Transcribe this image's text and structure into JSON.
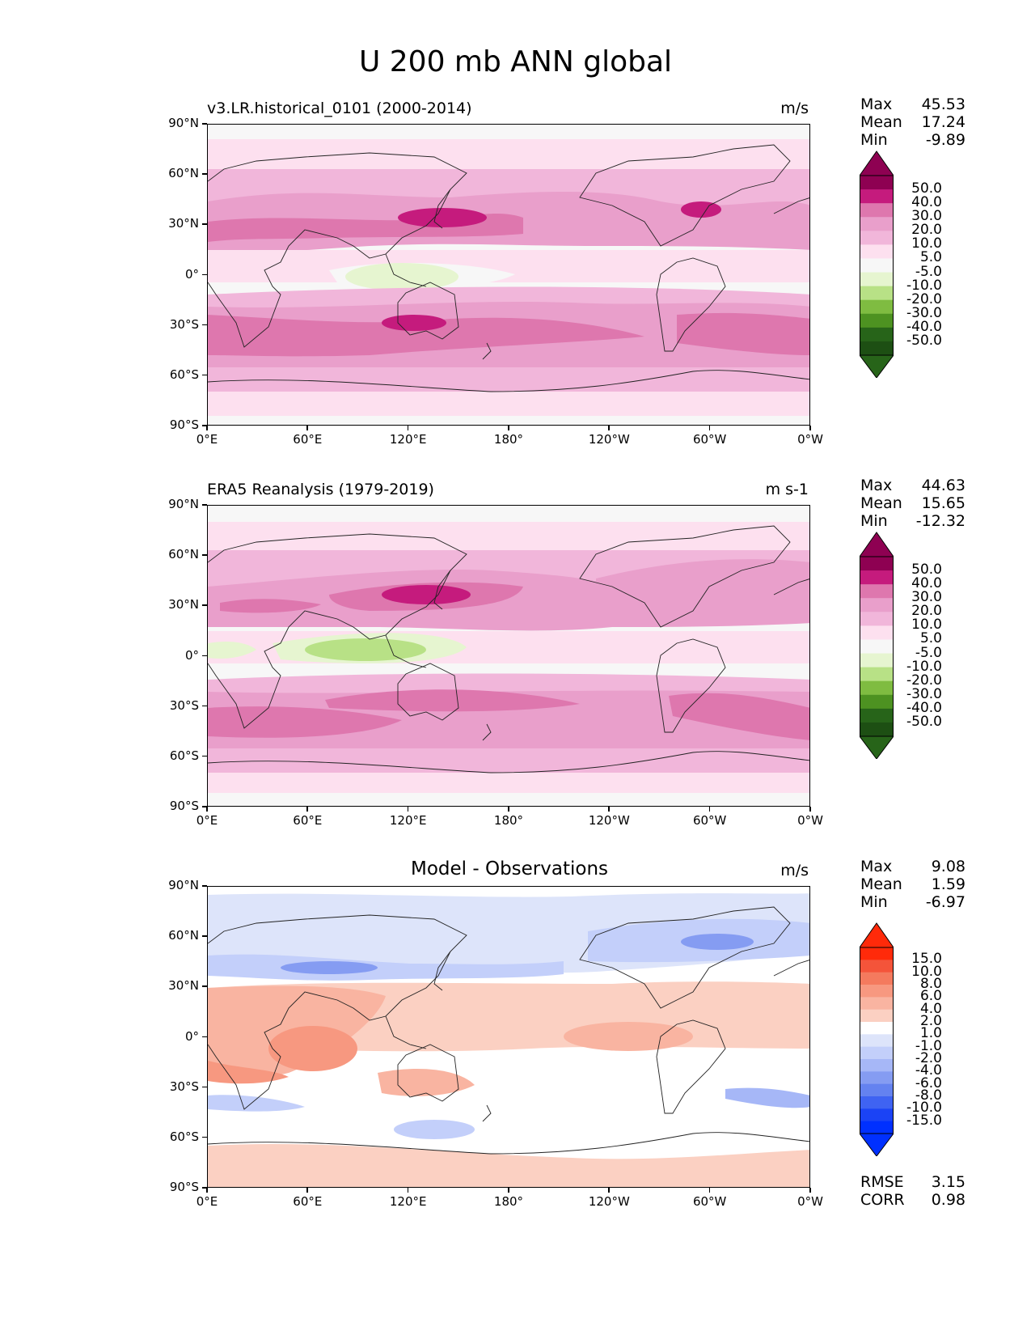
{
  "figure_title": "U 200 mb ANN global",
  "lat_labels": [
    "90°N",
    "60°N",
    "30°N",
    "0°",
    "30°S",
    "60°S",
    "90°S"
  ],
  "lon_labels": [
    "0°E",
    "60°E",
    "120°E",
    "180°",
    "120°W",
    "60°W",
    "0°W"
  ],
  "panels": [
    {
      "id": "test",
      "title_left": "v3.LR.historical_0101 (2000-2014)",
      "title_center": "",
      "units": "m/s",
      "stats": [
        {
          "label": "Max",
          "value": "45.53"
        },
        {
          "label": "Mean",
          "value": "17.24"
        },
        {
          "label": "Min",
          "value": "-9.89"
        }
      ],
      "colorbar_labels": [
        "50.0",
        "40.0",
        "30.0",
        "20.0",
        "10.0",
        "5.0",
        "-5.0",
        "-10.0",
        "-20.0",
        "-30.0",
        "-40.0",
        "-50.0"
      ],
      "colorbar_colors": [
        "#8e0152",
        "#c51b7d",
        "#de77ae",
        "#e99fcb",
        "#f1b6da",
        "#fde0ef",
        "#f7f7f7",
        "#e6f5d0",
        "#b8e186",
        "#7fbc41",
        "#4d9221",
        "#276419",
        "#1d4f13"
      ],
      "colorbar_upper_ext": "#8e0152",
      "colorbar_lower_ext": "#276419"
    },
    {
      "id": "reference",
      "title_left": "ERA5 Reanalysis (1979-2019)",
      "title_center": "",
      "units": "m s-1",
      "stats": [
        {
          "label": "Max",
          "value": "44.63"
        },
        {
          "label": "Mean",
          "value": "15.65"
        },
        {
          "label": "Min",
          "value": "-12.32"
        }
      ],
      "colorbar_labels": [
        "50.0",
        "40.0",
        "30.0",
        "20.0",
        "10.0",
        "5.0",
        "-5.0",
        "-10.0",
        "-20.0",
        "-30.0",
        "-40.0",
        "-50.0"
      ],
      "colorbar_colors": [
        "#8e0152",
        "#c51b7d",
        "#de77ae",
        "#e99fcb",
        "#f1b6da",
        "#fde0ef",
        "#f7f7f7",
        "#e6f5d0",
        "#b8e186",
        "#7fbc41",
        "#4d9221",
        "#276419",
        "#1d4f13"
      ],
      "colorbar_upper_ext": "#8e0152",
      "colorbar_lower_ext": "#276419"
    },
    {
      "id": "diff",
      "title_left": "",
      "title_center": "Model - Observations",
      "units": "m/s",
      "stats": [
        {
          "label": "Max",
          "value": "9.08"
        },
        {
          "label": "Mean",
          "value": "1.59"
        },
        {
          "label": "Min",
          "value": "-6.97"
        }
      ],
      "extra_stats": [
        {
          "label": "RMSE",
          "value": "3.15"
        },
        {
          "label": "CORR",
          "value": "0.98"
        }
      ],
      "colorbar_labels": [
        "15.0",
        "10.0",
        "8.0",
        "6.0",
        "4.0",
        "2.0",
        "1.0",
        "-1.0",
        "-2.0",
        "-4.0",
        "-6.0",
        "-8.0",
        "-10.0",
        "-15.0"
      ],
      "colorbar_colors": [
        "#ff2a0a",
        "#f4543a",
        "#f47a5e",
        "#f79880",
        "#f9b4a1",
        "#fbd0c2",
        "#ffffff",
        "#dde4fa",
        "#c3cffa",
        "#a6b7f7",
        "#859cf2",
        "#6482f0",
        "#3f63f2",
        "#1b43f5",
        "#0030ff"
      ],
      "colorbar_upper_ext": "#ff2a0a",
      "colorbar_lower_ext": "#0030ff"
    }
  ]
}
